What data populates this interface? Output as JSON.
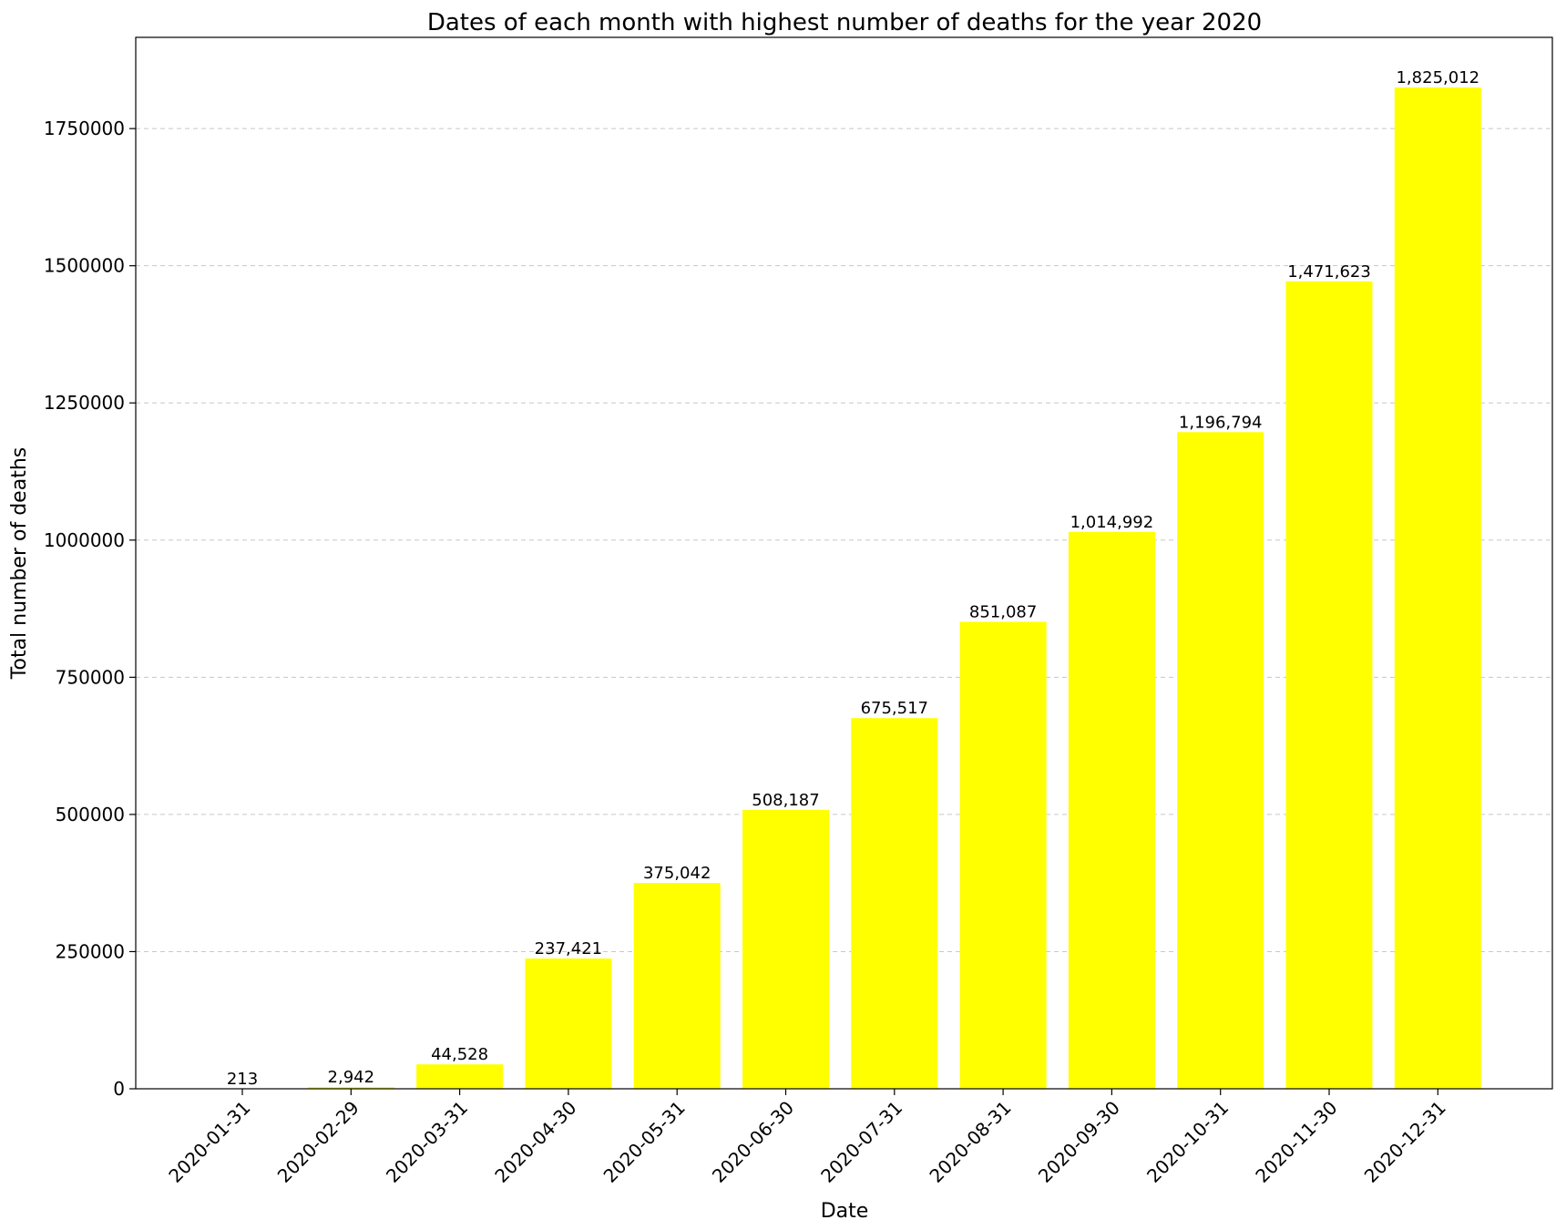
{
  "chart_data": {
    "type": "bar",
    "title": "Dates of each month with highest number of deaths for the year 2020",
    "xlabel": "Date",
    "ylabel": "Total number of deaths",
    "categories": [
      "2020-01-31",
      "2020-02-29",
      "2020-03-31",
      "2020-04-30",
      "2020-05-31",
      "2020-06-30",
      "2020-07-31",
      "2020-08-31",
      "2020-09-30",
      "2020-10-31",
      "2020-11-30",
      "2020-12-31"
    ],
    "values": [
      213,
      2942,
      44528,
      237421,
      375042,
      508187,
      675517,
      851087,
      1014992,
      1196794,
      1471623,
      1825012
    ],
    "data_labels": [
      "213",
      "2,942",
      "44,528",
      "237,421",
      "375,042",
      "508,187",
      "675,517",
      "851,087",
      "1,014,992",
      "1,196,794",
      "1,471,623",
      "1,825,012"
    ],
    "yticks": [
      0,
      250000,
      500000,
      750000,
      1000000,
      1250000,
      1500000,
      1750000
    ],
    "ytick_labels": [
      "0",
      "250000",
      "500000",
      "750000",
      "1000000",
      "1250000",
      "1500000",
      "1750000"
    ],
    "ylim": [
      0,
      1916263
    ],
    "bar_color": "#ffff00",
    "grid": "y-dashed"
  }
}
